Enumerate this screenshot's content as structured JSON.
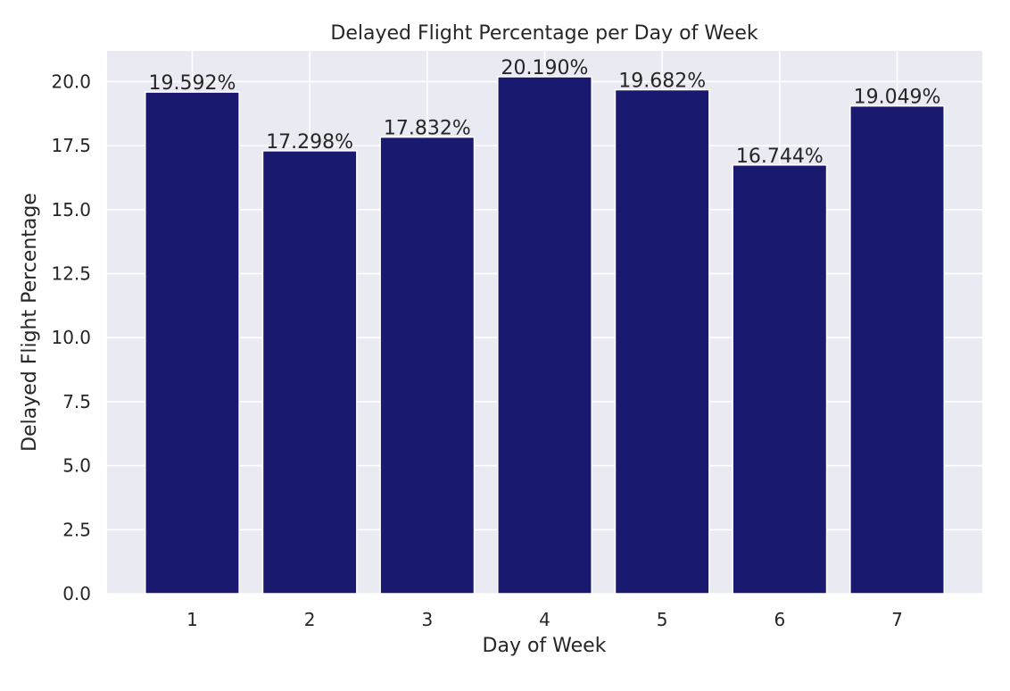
{
  "chart_data": {
    "type": "bar",
    "title": "Delayed Flight Percentage per Day of Week",
    "xlabel": "Day of Week",
    "ylabel": "Delayed Flight Percentage",
    "categories": [
      "1",
      "2",
      "3",
      "4",
      "5",
      "6",
      "7"
    ],
    "values": [
      19.592,
      17.298,
      17.832,
      20.19,
      19.682,
      16.744,
      19.049
    ],
    "data_labels": [
      "19.592%",
      "17.298%",
      "17.832%",
      "20.190%",
      "19.682%",
      "16.744%",
      "19.049%"
    ],
    "ylim": [
      0,
      21.2
    ],
    "yticks": [
      0.0,
      2.5,
      5.0,
      7.5,
      10.0,
      12.5,
      15.0,
      17.5,
      20.0
    ],
    "ytick_labels": [
      "0.0",
      "2.5",
      "5.0",
      "7.5",
      "10.0",
      "12.5",
      "15.0",
      "17.5",
      "20.0"
    ],
    "grid": true,
    "bar_color": "#191970",
    "background_color": "#EAEAF2",
    "grid_color": "#FFFFFF"
  }
}
